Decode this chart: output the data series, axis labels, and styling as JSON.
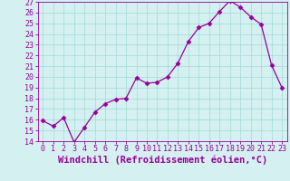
{
  "xlabel": "Windchill (Refroidissement éolien,°C)",
  "hours": [
    0,
    1,
    2,
    3,
    4,
    5,
    6,
    7,
    8,
    9,
    10,
    11,
    12,
    13,
    14,
    15,
    16,
    17,
    18,
    19,
    20,
    21,
    22,
    23
  ],
  "values": [
    15.9,
    15.4,
    16.2,
    13.9,
    15.3,
    16.7,
    17.5,
    17.9,
    18.0,
    19.9,
    19.4,
    19.5,
    20.0,
    21.3,
    23.3,
    24.6,
    25.0,
    26.1,
    27.1,
    26.5,
    25.6,
    24.9,
    21.1,
    19.0
  ],
  "line_color": "#990099",
  "marker": "D",
  "marker_size": 2.5,
  "bg_color": "#d4f0f0",
  "grid_color": "#aadddd",
  "ylim": [
    14,
    27
  ],
  "yticks": [
    14,
    15,
    16,
    17,
    18,
    19,
    20,
    21,
    22,
    23,
    24,
    25,
    26,
    27
  ],
  "tick_label_color": "#990099",
  "tick_label_size": 6,
  "xlabel_size": 7.5,
  "xlabel_color": "#990099",
  "xlabel_bold": true
}
